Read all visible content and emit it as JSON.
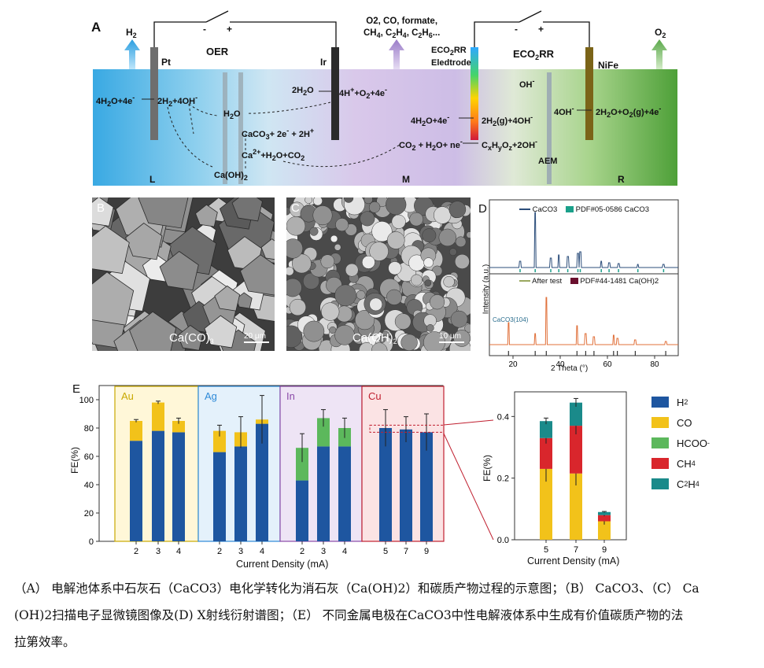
{
  "panelA": {
    "label": "A",
    "h2_top": "H2",
    "o2_top": "O2",
    "products_top": "O2, CO, formate,",
    "products_top2": "CH4, C2H4, C2H6...",
    "oer_label": "OER",
    "eco2rr_label": "ECO2RR",
    "eco2rr_electrode": "ECO2RR",
    "eco2rr_electrode2": "Eledtrode",
    "pt_label": "Pt",
    "ir_label": "Ir",
    "nife_label": "NiFe",
    "minus1": "-",
    "plus1": "+",
    "minus2": "-",
    "plus2": "+",
    "eq_left1": "4H2O+4e-",
    "eq_left2": "2H2+4OH-",
    "eq_h2o": "H2O",
    "eq_ir1": "2H2O",
    "eq_ir2": "4H++O2+4e-",
    "eq_caco3": "CaCO3+ 2e- + 2H+",
    "eq_ca2": "Ca2++H2O+CO2",
    "eq_caoh2": "Ca(OH)2",
    "eq_mid1": "4H2O+4e-",
    "eq_mid2": "2H2(g)+4OH-",
    "eq_co2": "CO2 + H2O+ ne-",
    "eq_cxhy": "CxHyOz+2OH-",
    "eq_oh": "OH-",
    "eq_right1": "4OH-",
    "eq_right2": "2H2O+O2(g)+4e-",
    "aem": "AEM",
    "region_L": "L",
    "region_M": "M",
    "region_R": "R"
  },
  "panelB": {
    "label": "B",
    "caption": "Ca(CO)3",
    "scale": "20 μm"
  },
  "panelC": {
    "label": "C",
    "caption": "Ca(OH)2",
    "scale": "10 μm"
  },
  "panelD": {
    "label": "D",
    "legend_top_line": "CaCO3",
    "legend_top_ref": "PDF#05-0586 CaCO3",
    "legend_bot_line": "After test",
    "legend_bot_ref": "PDF#44-1481 Ca(OH)2",
    "peak_label": "CaCO3(104)",
    "ylabel": "Intensity (a.u.)",
    "xlabel": "2 Theta (°)",
    "xticks": [
      "20",
      "40",
      "60",
      "80"
    ]
  },
  "panelE": {
    "label": "E",
    "groups": [
      "Au",
      "Ag",
      "In",
      "Cu"
    ],
    "group_colors": [
      "#c8a800",
      "#2e8ad8",
      "#8a4aa8",
      "#c02030"
    ],
    "ylabel": "FE(%)",
    "xlabel": "Current Density (mA)",
    "yticks": [
      "0",
      "20",
      "40",
      "60",
      "80",
      "100"
    ]
  },
  "panelE2": {
    "ylabel": "FE(%)",
    "xlabel": "Current Density (mA)",
    "yticks": [
      "0.0",
      "0.2",
      "0.4"
    ],
    "xticks": [
      "5",
      "7",
      "9"
    ]
  },
  "legend": [
    {
      "name": "H2",
      "color": "#1e56a0"
    },
    {
      "name": "CO",
      "color": "#f2c21a"
    },
    {
      "name": "HCOO-",
      "color": "#5cb85c"
    },
    {
      "name": "CH4",
      "color": "#d9262c"
    },
    {
      "name": "C2H4",
      "color": "#1a8a8a"
    }
  ],
  "chart_data": [
    {
      "type": "bar",
      "stacked": true,
      "xlabel": "Current Density (mA)",
      "ylabel": "FE(%)",
      "ylim": [
        0,
        110
      ],
      "categories": [
        "2",
        "3",
        "4",
        "2",
        "3",
        "4",
        "2",
        "3",
        "4",
        "5",
        "7",
        "9"
      ],
      "groups": [
        "Au",
        "Au",
        "Au",
        "Ag",
        "Ag",
        "Ag",
        "In",
        "In",
        "In",
        "Cu",
        "Cu",
        "Cu"
      ],
      "series": [
        {
          "name": "H2",
          "values": [
            71,
            78,
            77,
            63,
            67,
            83,
            43,
            67,
            67,
            80,
            79,
            77
          ]
        },
        {
          "name": "CO",
          "values": [
            14,
            20,
            8,
            15,
            10,
            3,
            0,
            0,
            0,
            0,
            0,
            0
          ]
        },
        {
          "name": "HCOO-",
          "values": [
            0,
            0,
            0,
            0,
            0,
            0,
            23,
            20,
            13,
            0,
            0,
            0
          ]
        }
      ],
      "error_top": [
        86,
        99,
        87,
        82,
        88,
        103,
        76,
        93,
        87,
        93,
        88,
        90
      ]
    },
    {
      "type": "bar",
      "stacked": true,
      "xlabel": "Current Density (mA)",
      "ylabel": "FE(%)",
      "ylim": [
        0,
        0.48
      ],
      "categories": [
        "5",
        "7",
        "9"
      ],
      "series": [
        {
          "name": "CO",
          "values": [
            0.23,
            0.215,
            0.06
          ]
        },
        {
          "name": "CH4",
          "values": [
            0.1,
            0.155,
            0.02
          ]
        },
        {
          "name": "C2H4",
          "values": [
            0.055,
            0.075,
            0.01
          ]
        }
      ]
    }
  ],
  "caption": {
    "line1": "（A） 电解池体系中石灰石（CaCO3）电化学转化为消石灰（Ca(OH)2）和碳质产物过程的示意图；（B） CaCO3、（C） Ca",
    "line2": "(OH)2扫描电子显微镜图像及(D) X射线衍射谱图；（E） 不同金属电极在CaCO3中性电解液体系中生成有价值碳质产物的法",
    "line3": "拉第效率。"
  }
}
